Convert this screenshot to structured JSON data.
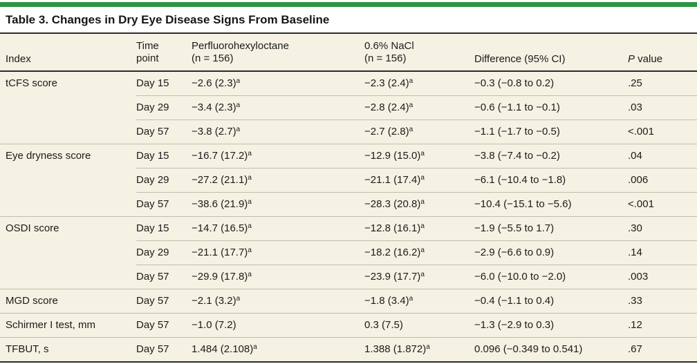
{
  "colors": {
    "accent_green": "#2e9640",
    "table_background": "#f5f1e3",
    "rule_dark": "#2b2b2b",
    "rule_light": "#c0bcae"
  },
  "title": "Table 3. Changes in Dry Eye Disease Signs From Baseline",
  "columns": {
    "index": "Index",
    "time_line1": "Time",
    "time_line2": "point",
    "drug_line1": "Perfluorohexyloctane",
    "drug_line2": "(n = 156)",
    "control_line1": "0.6% NaCl",
    "control_line2": "(n = 156)",
    "difference": "Difference (95% CI)",
    "p_italic": "P",
    "p_rest": " value"
  },
  "rows": [
    {
      "index": "tCFS score",
      "time": "Day 15",
      "drug": "−2.6 (2.3)",
      "drug_sup": "a",
      "control": "−2.3 (2.4)",
      "control_sup": "a",
      "diff": "−0.3 (−0.8 to 0.2)",
      "p": ".25"
    },
    {
      "index": "",
      "time": "Day 29",
      "drug": "−3.4 (2.3)",
      "drug_sup": "a",
      "control": "−2.8 (2.4)",
      "control_sup": "a",
      "diff": "−0.6 (−1.1 to −0.1)",
      "p": ".03"
    },
    {
      "index": "",
      "time": "Day 57",
      "drug": "−3.8 (2.7)",
      "drug_sup": "a",
      "control": "−2.7 (2.8)",
      "control_sup": "a",
      "diff": "−1.1 (−1.7 to −0.5)",
      "p": "<.001"
    },
    {
      "index": "Eye dryness score",
      "time": "Day 15",
      "drug": "−16.7 (17.2)",
      "drug_sup": "a",
      "control": "−12.9 (15.0)",
      "control_sup": "a",
      "diff": "−3.8 (−7.4 to −0.2)",
      "p": ".04"
    },
    {
      "index": "",
      "time": "Day 29",
      "drug": "−27.2 (21.1)",
      "drug_sup": "a",
      "control": "−21.1 (17.4)",
      "control_sup": "a",
      "diff": "−6.1 (−10.4 to −1.8)",
      "p": ".006"
    },
    {
      "index": "",
      "time": "Day 57",
      "drug": "−38.6 (21.9)",
      "drug_sup": "a",
      "control": "−28.3 (20.8)",
      "control_sup": "a",
      "diff": "−10.4 (−15.1 to −5.6)",
      "p": "<.001"
    },
    {
      "index": "OSDI score",
      "time": "Day 15",
      "drug": "−14.7 (16.5)",
      "drug_sup": "a",
      "control": "−12.8 (16.1)",
      "control_sup": "a",
      "diff": "−1.9 (−5.5 to 1.7)",
      "p": ".30"
    },
    {
      "index": "",
      "time": "Day 29",
      "drug": "−21.1 (17.7)",
      "drug_sup": "a",
      "control": "−18.2 (16.2)",
      "control_sup": "a",
      "diff": "−2.9 (−6.6 to 0.9)",
      "p": ".14"
    },
    {
      "index": "",
      "time": "Day 57",
      "drug": "−29.9 (17.8)",
      "drug_sup": "a",
      "control": "−23.9 (17.7)",
      "control_sup": "a",
      "diff": "−6.0 (−10.0 to −2.0)",
      "p": ".003"
    },
    {
      "index": "MGD score",
      "time": "Day 57",
      "drug": "−2.1 (3.2)",
      "drug_sup": "a",
      "control": "−1.8 (3.4)",
      "control_sup": "a",
      "diff": "−0.4 (−1.1 to 0.4)",
      "p": ".33"
    },
    {
      "index": "Schirmer I test, mm",
      "time": "Day 57",
      "drug": "−1.0 (7.2)",
      "control": "0.3 (7.5)",
      "diff": "−1.3 (−2.9 to 0.3)",
      "p": ".12"
    },
    {
      "index": "TFBUT, s",
      "time": "Day 57",
      "drug": "1.484 (2.108)",
      "drug_sup": "a",
      "control": "1.388 (1.872)",
      "control_sup": "a",
      "diff": "0.096 (−0.349 to 0.541)",
      "p": ".67"
    }
  ]
}
